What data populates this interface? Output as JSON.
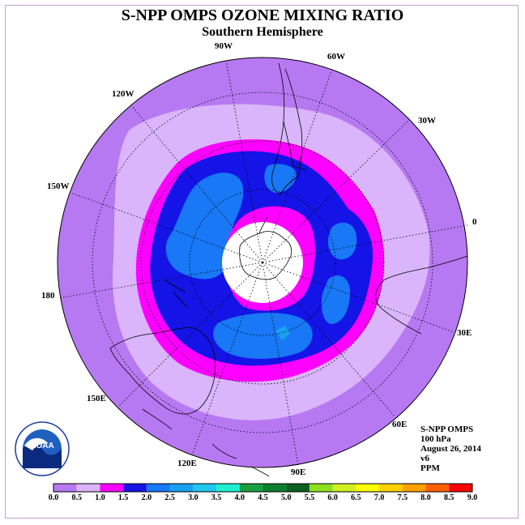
{
  "header": {
    "title": "S-NPP OMPS OZONE MIXING RATIO",
    "subtitle": "Southern Hemisphere"
  },
  "map": {
    "lon_labels": [
      "90W",
      "60W",
      "30W",
      "0",
      "30E",
      "60E",
      "90E",
      "120E",
      "150E",
      "180",
      "150W",
      "120W"
    ],
    "pole_fill": "#ffffff",
    "ring_colors": {
      "outer": "#b779f2",
      "light": "#dab5fb",
      "magenta": "#ff00ff",
      "dark_blue": "#1414e6",
      "mid_blue": "#1878f5"
    }
  },
  "info": {
    "line1": "S-NPP OMPS",
    "line2": "100 hPa",
    "line3": "August 26, 2014",
    "line4": "v6",
    "line5": "PPM"
  },
  "colorbar": {
    "labels": [
      "0.0",
      "0.5",
      "1.0",
      "1.5",
      "2.0",
      "2.5",
      "3.0",
      "3.5",
      "4.0",
      "4.5",
      "5.0",
      "5.5",
      "6.0",
      "6.5",
      "7.0",
      "7.5",
      "8.0",
      "8.5",
      "9.0"
    ],
    "colors": [
      "#b779f2",
      "#dab5fb",
      "#ff00ff",
      "#1414e6",
      "#1878f5",
      "#1aa0f0",
      "#20c8f0",
      "#20f0d0",
      "#18a040",
      "#0a8030",
      "#0a6020",
      "#90e020",
      "#d0f020",
      "#ffff00",
      "#ffd000",
      "#ffa000",
      "#ff6000",
      "#ff0000",
      "#8b5a3c"
    ]
  },
  "logo": {
    "text": "NOAA",
    "ring_text": "NATIONAL OCEANIC AND ATMOSPHERIC ADMINISTRATION · U.S. DEPARTMENT OF COMMERCE"
  }
}
